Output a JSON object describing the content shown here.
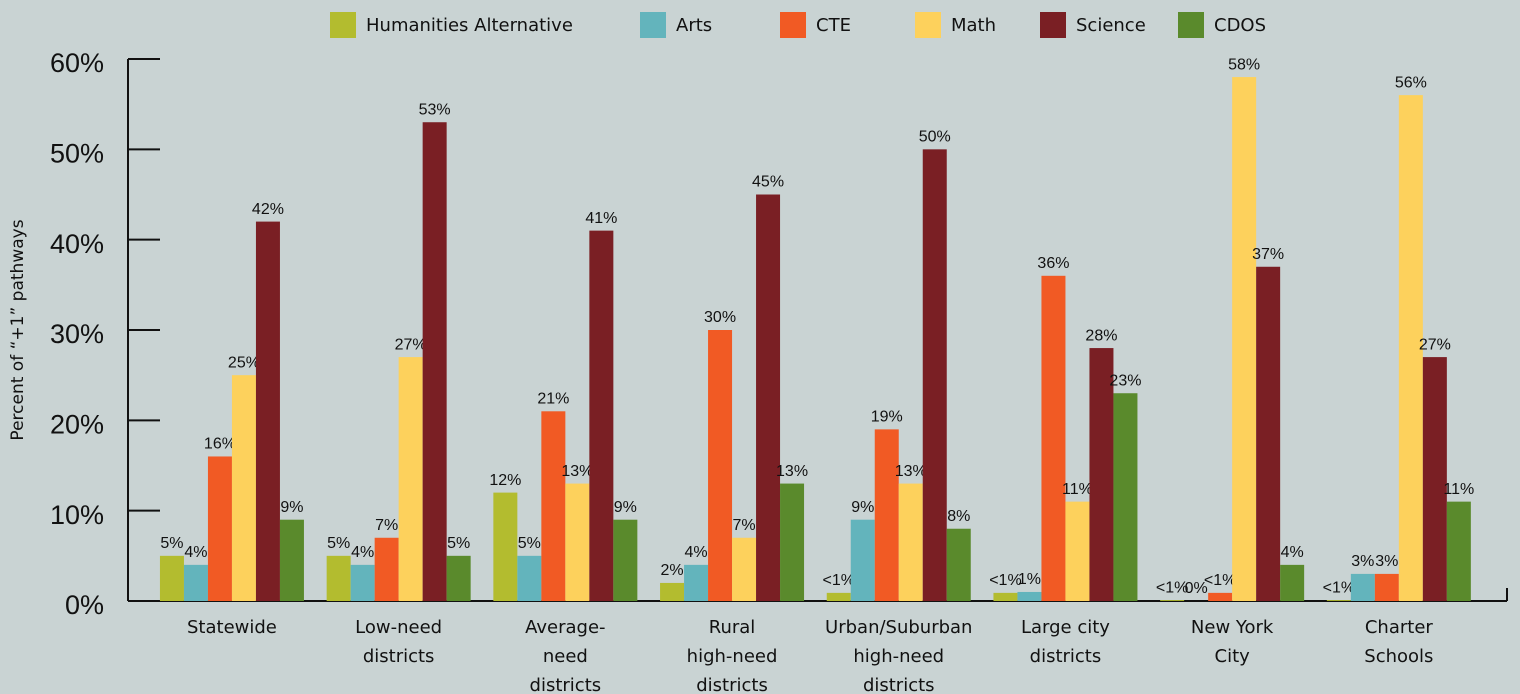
{
  "chart_data": {
    "type": "bar",
    "y_label": "Percent of “+1” pathways",
    "categories": [
      [
        "Statewide"
      ],
      [
        "Low-need",
        "districts"
      ],
      [
        "Average-",
        "need",
        "districts"
      ],
      [
        "Rural",
        "high-need",
        "districts"
      ],
      [
        "Urban/Suburban",
        "high-need",
        "districts"
      ],
      [
        "Large city",
        "districts"
      ],
      [
        "New York",
        "City"
      ],
      [
        "Charter",
        "Schools"
      ]
    ],
    "series": [
      {
        "name": "Humanities Alternative",
        "color": "#b3bc2f",
        "values": [
          5,
          5,
          12,
          2,
          0.9,
          0.9,
          0.1,
          0.1
        ],
        "value_labels": [
          "5%",
          "5%",
          "12%",
          "2%",
          "<1%",
          "<1%",
          "<1%",
          "<1%"
        ]
      },
      {
        "name": "Arts",
        "color": "#63b4bc",
        "values": [
          4,
          4,
          5,
          4,
          9,
          1,
          0,
          3
        ],
        "value_labels": [
          "4%",
          "4%",
          "5%",
          "4%",
          "9%",
          "1%",
          "0%",
          "3%"
        ]
      },
      {
        "name": "CTE",
        "color": "#f15a24",
        "values": [
          16,
          7,
          21,
          30,
          19,
          36,
          0.9,
          3
        ],
        "value_labels": [
          "16%",
          "7%",
          "21%",
          "30%",
          "19%",
          "36%",
          "<1%",
          "3%"
        ]
      },
      {
        "name": "Math",
        "color": "#fdd15c",
        "values": [
          25,
          27,
          13,
          7,
          13,
          11,
          58,
          56
        ],
        "value_labels": [
          "25%",
          "27%",
          "13%",
          "7%",
          "13%",
          "11%",
          "58%",
          "56%"
        ]
      },
      {
        "name": "Science",
        "color": "#7a1f24",
        "values": [
          42,
          53,
          41,
          45,
          50,
          28,
          37,
          27
        ],
        "value_labels": [
          "42%",
          "53%",
          "41%",
          "45%",
          "50%",
          "28%",
          "37%",
          "27%"
        ]
      },
      {
        "name": "CDOS",
        "color": "#5a8a2c",
        "values": [
          9,
          5,
          9,
          13,
          8,
          23,
          4,
          11
        ],
        "value_labels": [
          "9%",
          "5%",
          "9%",
          "13%",
          "8%",
          "23%",
          "4%",
          "11%"
        ]
      }
    ],
    "ylim": [
      0,
      60
    ],
    "yticks": [
      {
        "value": 0,
        "label": "0%"
      },
      {
        "value": 10,
        "label": "10%"
      },
      {
        "value": 20,
        "label": "20%"
      },
      {
        "value": 30,
        "label": "30%"
      },
      {
        "value": 40,
        "label": "40%"
      },
      {
        "value": 50,
        "label": "50%"
      },
      {
        "value": 60,
        "label": "60%"
      }
    ],
    "legend": "top"
  }
}
